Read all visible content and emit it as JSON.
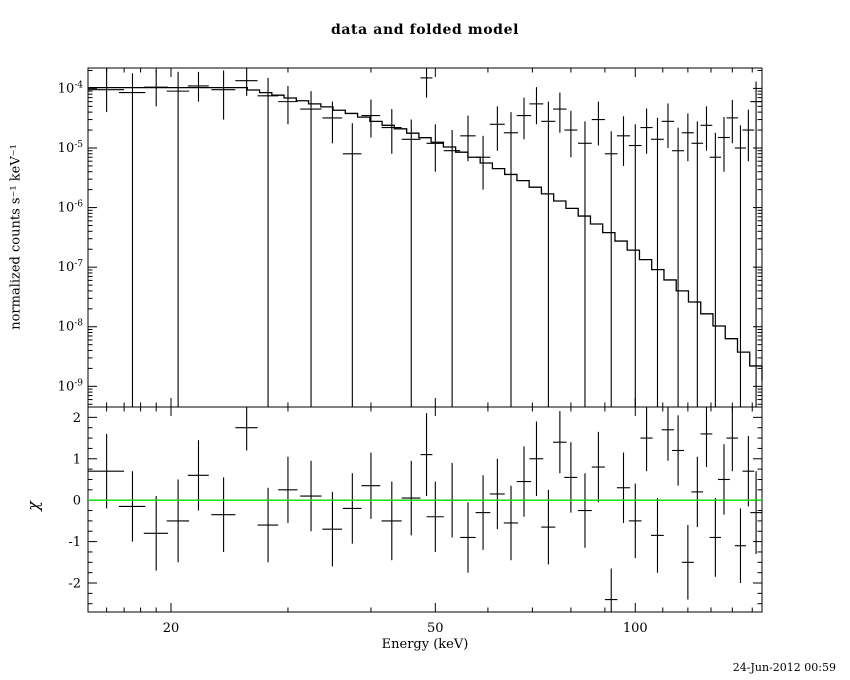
{
  "chart_data": {
    "type": "line",
    "title": "data and folded model",
    "xlabel": "Energy (keV)",
    "timestamp": "24-Jun-2012 00:59",
    "colors": {
      "foreground": "#000000",
      "background": "#ffffff",
      "data": "#000000",
      "model": "#000000",
      "zero_line": "#00dd00"
    },
    "panels": [
      {
        "name": "spectrum",
        "ylabel": "normalized counts s⁻¹ keV⁻¹",
        "xscale": "log",
        "yscale": "log",
        "xlim": [
          15,
          155.16
        ],
        "ylim": [
          4.5e-10,
          0.00022
        ],
        "x_major_ticks": [
          20,
          50,
          100
        ],
        "x_minor_ticks": [
          16,
          17,
          18,
          19,
          30,
          40,
          60,
          70,
          80,
          90,
          110,
          120,
          130,
          140,
          150
        ],
        "y_tick_exponents": [
          -4,
          -5,
          -6,
          -7,
          -8,
          -9
        ],
        "model_step": {
          "edges": [
            15.0,
            15.65,
            16.33,
            17.04,
            17.78,
            18.55,
            19.36,
            20.2,
            21.07,
            21.99,
            22.94,
            23.94,
            24.97,
            26.06,
            27.19,
            28.37,
            29.6,
            30.88,
            32.22,
            33.62,
            35.08,
            36.6,
            38.19,
            39.85,
            41.58,
            43.38,
            45.27,
            47.23,
            49.28,
            51.42,
            53.65,
            55.98,
            58.41,
            60.94,
            63.59,
            66.35,
            69.22,
            72.23,
            75.36,
            78.63,
            82.05,
            85.61,
            89.32,
            93.2,
            97.24,
            101.46,
            105.86,
            110.46,
            115.25,
            120.25,
            125.47,
            130.91,
            136.59,
            142.52,
            148.7,
            155.16
          ],
          "values": [
            0.000103,
            0.000103,
            0.000103,
            0.000103,
            0.000103,
            0.000103,
            0.000103,
            0.000103,
            0.000103,
            0.000103,
            0.000103,
            0.000103,
            0.000103,
            9.4e-05,
            8.5e-05,
            7.7e-05,
            6.9e-05,
            6.2e-05,
            5.5e-05,
            4.9e-05,
            4.3e-05,
            3.8e-05,
            3.3e-05,
            2.8e-05,
            2.4e-05,
            2.1e-05,
            1.77e-05,
            1.49e-05,
            1.25e-05,
            1.04e-05,
            8.5e-06,
            7e-06,
            5.6e-06,
            4.5e-06,
            3.6e-06,
            2.83e-06,
            2.2e-06,
            1.7e-06,
            1.29e-06,
            9.7e-07,
            7.2e-07,
            5.3e-07,
            3.8e-07,
            2.74e-07,
            1.93e-07,
            1.34e-07,
            9.1e-08,
            6.1e-08,
            4e-08,
            2.6e-08,
            1.65e-08,
            1.03e-08,
            6.3e-09,
            3.75e-09,
            2.2e-09,
            1.25e-09
          ]
        },
        "points": [
          [
            16.0,
            1.0,
            9.5e-05,
            4e-05,
            0.00022
          ],
          [
            17.5,
            0.8,
            8.5e-05,
            1e-10,
            0.00018
          ],
          [
            19.0,
            0.8,
            0.000105,
            5e-05,
            0.0002
          ],
          [
            20.5,
            0.8,
            9e-05,
            1e-10,
            0.00019
          ],
          [
            22.0,
            0.8,
            0.00011,
            6e-05,
            0.00019
          ],
          [
            24.0,
            1.0,
            9.5e-05,
            3e-05,
            0.0002
          ],
          [
            26.0,
            1.0,
            0.000135,
            7.5e-05,
            0.00023
          ],
          [
            28.0,
            1.0,
            7.5e-05,
            1e-10,
            0.00015
          ],
          [
            30.0,
            1.0,
            6e-05,
            2.5e-05,
            0.00011
          ],
          [
            32.5,
            1.2,
            4.5e-05,
            1e-10,
            9e-05
          ],
          [
            35.0,
            1.2,
            3.2e-05,
            1.2e-05,
            6e-05
          ],
          [
            37.5,
            1.2,
            8e-06,
            1e-10,
            2.6e-05
          ],
          [
            40.0,
            1.3,
            3.5e-05,
            1.5e-05,
            6.5e-05
          ],
          [
            43.0,
            1.5,
            2.2e-05,
            8e-06,
            4.5e-05
          ],
          [
            46.0,
            1.5,
            1.4e-05,
            1e-10,
            3e-05
          ],
          [
            48.5,
            1.0,
            0.00015,
            7e-05,
            0.00026
          ],
          [
            50.0,
            1.5,
            1.2e-05,
            4e-06,
            2.5e-05
          ],
          [
            53.0,
            1.5,
            9e-06,
            1e-10,
            2e-05
          ],
          [
            56.0,
            1.5,
            1.6e-05,
            6e-06,
            3.5e-05
          ],
          [
            59.0,
            1.5,
            7e-06,
            2e-06,
            1.6e-05
          ],
          [
            62.0,
            1.6,
            2.5e-05,
            9e-06,
            5e-05
          ],
          [
            65.0,
            1.6,
            1.8e-05,
            1e-10,
            4e-05
          ],
          [
            68.0,
            1.7,
            3.5e-05,
            1.4e-05,
            7e-05
          ],
          [
            71.0,
            1.7,
            5.5e-05,
            2.5e-05,
            0.000105
          ],
          [
            74.0,
            1.8,
            2.8e-05,
            1e-10,
            6e-05
          ],
          [
            77.0,
            1.8,
            4.5e-05,
            1.8e-05,
            8.5e-05
          ],
          [
            80.0,
            1.8,
            2e-05,
            7e-06,
            4.2e-05
          ],
          [
            84.0,
            2.0,
            1.2e-05,
            1e-10,
            2.8e-05
          ],
          [
            88.0,
            2.0,
            3e-05,
            1.1e-05,
            6e-05
          ],
          [
            92.0,
            2.0,
            8e-06,
            1e-10,
            1.9e-05
          ],
          [
            96.0,
            2.2,
            1.6e-05,
            5e-06,
            3.4e-05
          ],
          [
            100.0,
            2.2,
            1.1e-05,
            1e-10,
            2.5e-05
          ],
          [
            104.0,
            2.2,
            2.2e-05,
            8e-06,
            4.6e-05
          ],
          [
            108.0,
            2.4,
            1.4e-05,
            1e-10,
            3.2e-05
          ],
          [
            112.0,
            2.4,
            2.8e-05,
            1e-05,
            5.6e-05
          ],
          [
            116.0,
            2.4,
            9e-06,
            1e-10,
            2.2e-05
          ],
          [
            120.0,
            2.5,
            1.8e-05,
            6e-06,
            3.8e-05
          ],
          [
            124.0,
            2.5,
            1.2e-05,
            1e-10,
            2.8e-05
          ],
          [
            128.0,
            2.6,
            2.4e-05,
            9e-06,
            5e-05
          ],
          [
            132.0,
            2.6,
            7e-06,
            1e-10,
            1.8e-05
          ],
          [
            136.0,
            2.8,
            1.5e-05,
            4e-06,
            3.3e-05
          ],
          [
            140.0,
            2.8,
            3.2e-05,
            1.2e-05,
            6.4e-05
          ],
          [
            144.0,
            2.8,
            1e-05,
            1e-10,
            2.4e-05
          ],
          [
            148.0,
            3.0,
            2e-05,
            6e-06,
            4.4e-05
          ],
          [
            152.0,
            3.0,
            6e-05,
            1e-10,
            0.00013
          ]
        ]
      },
      {
        "name": "residuals",
        "ylabel": "χ",
        "xscale": "log",
        "yscale": "linear",
        "ylim": [
          -2.7,
          2.25
        ],
        "y_major_ticks": [
          -2,
          -1,
          0,
          1,
          2
        ],
        "points": [
          [
            16.0,
            1.0,
            0.7,
            0.9
          ],
          [
            17.5,
            0.8,
            -0.15,
            0.85
          ],
          [
            19.0,
            0.8,
            -0.8,
            0.9
          ],
          [
            20.5,
            0.8,
            -0.5,
            1.0
          ],
          [
            22.0,
            0.8,
            0.6,
            0.85
          ],
          [
            24.0,
            1.0,
            -0.35,
            0.9
          ],
          [
            26.0,
            1.0,
            1.75,
            0.55
          ],
          [
            28.0,
            1.0,
            -0.6,
            0.9
          ],
          [
            30.0,
            1.0,
            0.25,
            0.8
          ],
          [
            32.5,
            1.2,
            0.1,
            0.85
          ],
          [
            35.0,
            1.2,
            -0.7,
            0.9
          ],
          [
            37.5,
            1.2,
            -0.2,
            0.85
          ],
          [
            40.0,
            1.3,
            0.35,
            0.8
          ],
          [
            43.0,
            1.5,
            -0.5,
            0.95
          ],
          [
            46.0,
            1.5,
            0.05,
            0.9
          ],
          [
            48.5,
            1.0,
            1.1,
            1.0
          ],
          [
            50.0,
            1.5,
            -0.4,
            0.85
          ],
          [
            53.0,
            1.5,
            0.0,
            0.9
          ],
          [
            56.0,
            1.5,
            -0.9,
            0.85
          ],
          [
            59.0,
            1.5,
            -0.3,
            0.9
          ],
          [
            62.0,
            1.6,
            0.15,
            0.85
          ],
          [
            65.0,
            1.6,
            -0.55,
            0.9
          ],
          [
            68.0,
            1.7,
            0.45,
            0.85
          ],
          [
            71.0,
            1.7,
            1.0,
            0.9
          ],
          [
            74.0,
            1.8,
            -0.65,
            0.9
          ],
          [
            77.0,
            1.8,
            1.4,
            0.75
          ],
          [
            80.0,
            1.8,
            0.55,
            0.85
          ],
          [
            84.0,
            2.0,
            -0.25,
            0.9
          ],
          [
            88.0,
            2.0,
            0.8,
            0.85
          ],
          [
            92.0,
            2.0,
            -2.4,
            0.75
          ],
          [
            96.0,
            2.2,
            0.3,
            0.85
          ],
          [
            100.0,
            2.2,
            -0.5,
            0.9
          ],
          [
            104.0,
            2.2,
            1.5,
            0.8
          ],
          [
            108.0,
            2.4,
            -0.85,
            0.9
          ],
          [
            112.0,
            2.4,
            1.7,
            0.75
          ],
          [
            116.0,
            2.4,
            1.2,
            0.85
          ],
          [
            120.0,
            2.5,
            -1.5,
            0.9
          ],
          [
            124.0,
            2.5,
            0.2,
            0.85
          ],
          [
            128.0,
            2.6,
            1.6,
            0.8
          ],
          [
            132.0,
            2.6,
            -0.9,
            0.95
          ],
          [
            136.0,
            2.8,
            0.5,
            0.85
          ],
          [
            140.0,
            2.8,
            1.5,
            0.8
          ],
          [
            144.0,
            2.8,
            -1.1,
            0.9
          ],
          [
            148.0,
            3.0,
            0.7,
            0.85
          ],
          [
            152.0,
            3.0,
            -0.3,
            1.0
          ]
        ]
      }
    ]
  }
}
